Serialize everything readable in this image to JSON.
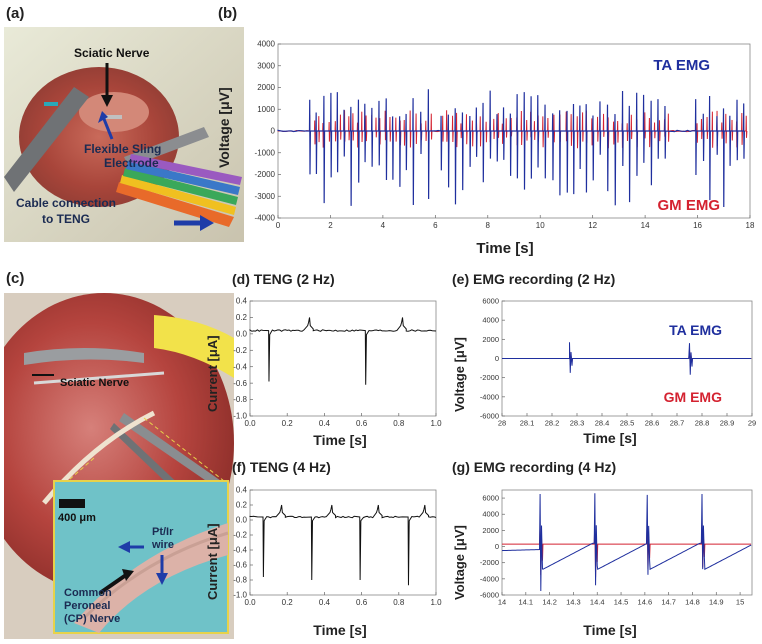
{
  "panel_a": {
    "label": "(a)",
    "annotations": {
      "nerve": "Sciatic Nerve",
      "electrode_1": "Flexible Sling",
      "electrode_2": "Electrode",
      "cable_1": "Cable connection",
      "cable_2": "to TENG"
    }
  },
  "panel_c": {
    "label": "(c)",
    "annotations": {
      "nerve": "Sciatic Nerve",
      "scale": "400 μm",
      "wire_1": "Pt/Ir",
      "wire_2": "wire",
      "cp_1": "Common",
      "cp_2": "Peroneal",
      "cp_3": "(CP) Nerve"
    }
  },
  "colors": {
    "ta": "#1f2f9e",
    "gm": "#d42230",
    "teng": "#111111",
    "axis": "#555555"
  },
  "chart_data": [
    {
      "id": "b",
      "label": "(b)",
      "type": "line",
      "title": "",
      "xlabel": "Time [s]",
      "ylabel": "Voltage [μV]",
      "xlim": [
        0,
        18
      ],
      "ylim": [
        -4000,
        4000
      ],
      "xticks": [
        0,
        2,
        4,
        6,
        8,
        10,
        12,
        14,
        16,
        18
      ],
      "yticks": [
        4000,
        3000,
        2000,
        1000,
        0,
        -1000,
        -2000,
        -3000,
        -4000
      ],
      "legend_ta": "TA EMG",
      "legend_gm": "GM EMG",
      "bursts": [
        [
          1.2,
          5.9
        ],
        [
          6.2,
          13.8
        ],
        [
          13.9,
          14.9
        ],
        [
          15.9,
          18
        ]
      ],
      "series": [
        {
          "name": "TA EMG",
          "color": "#1f2f9e",
          "peak_amplitude": 3500
        },
        {
          "name": "GM EMG",
          "color": "#d42230",
          "peak_amplitude": 1600
        }
      ]
    },
    {
      "id": "d",
      "label": "(d) TENG (2 Hz)",
      "type": "line",
      "xlabel": "Time [s]",
      "ylabel": "Current [μA]",
      "xlim": [
        0,
        1.0
      ],
      "ylim": [
        -1.0,
        0.4
      ],
      "xticks": [
        "0.0",
        "0.2",
        "0.4",
        "0.6",
        "0.8",
        "1.0"
      ],
      "yticks": [
        "0.4",
        "0.2",
        "0.0",
        "-0.2",
        "-0.4",
        "-0.6",
        "-0.8",
        "-1.0"
      ],
      "baseline": 0.04,
      "negative_peaks": [
        {
          "t": 0.1,
          "v": -0.58
        },
        {
          "t": 0.62,
          "v": -0.62
        }
      ],
      "positive_peaks": [
        {
          "t": 0.32,
          "v": 0.2
        },
        {
          "t": 0.82,
          "v": 0.2
        }
      ]
    },
    {
      "id": "e",
      "label": "(e) EMG recording (2 Hz)",
      "type": "line",
      "xlabel": "Time [s]",
      "ylabel": "Voltage [μV]",
      "xlim": [
        28,
        29
      ],
      "ylim": [
        -6000,
        6000
      ],
      "xticks": [
        "28",
        "28.1",
        "28.2",
        "28.3",
        "28.4",
        "28.5",
        "28.6",
        "28.7",
        "28.8",
        "28.9",
        "29"
      ],
      "yticks": [
        "6000",
        "4000",
        "2000",
        "0",
        "-2000",
        "-4000",
        "-6000"
      ],
      "legend_ta": "TA EMG",
      "legend_gm": "GM EMG",
      "spikes": [
        {
          "t": 28.27,
          "ta": [
            1700,
            -1500
          ],
          "gm": [
            800,
            -700
          ]
        },
        {
          "t": 28.75,
          "ta": [
            1600,
            -1700
          ],
          "gm": [
            900,
            -800
          ]
        }
      ]
    },
    {
      "id": "f",
      "label": "(f) TENG (4 Hz)",
      "type": "line",
      "xlabel": "Time [s]",
      "ylabel": "Current [μA]",
      "xlim": [
        0,
        1.0
      ],
      "ylim": [
        -1.0,
        0.4
      ],
      "xticks": [
        "0.0",
        "0.2",
        "0.4",
        "0.6",
        "0.8",
        "1.0"
      ],
      "yticks": [
        "0.4",
        "0.2",
        "0.0",
        "-0.2",
        "-0.4",
        "-0.6",
        "-0.8",
        "-1.0"
      ],
      "baseline": 0.04,
      "negative_peaks": [
        {
          "t": 0.07,
          "v": -0.76
        },
        {
          "t": 0.33,
          "v": -0.8
        },
        {
          "t": 0.59,
          "v": -0.8
        },
        {
          "t": 0.85,
          "v": -0.87
        }
      ],
      "positive_peaks": [
        {
          "t": 0.17,
          "v": 0.2
        },
        {
          "t": 0.44,
          "v": 0.2
        },
        {
          "t": 0.69,
          "v": 0.2
        },
        {
          "t": 0.94,
          "v": 0.2
        }
      ]
    },
    {
      "id": "g",
      "label": "(g) EMG recording (4 Hz)",
      "type": "line",
      "xlabel": "Time [s]",
      "ylabel": "Voltage [μV]",
      "xlim": [
        14,
        15.05
      ],
      "ylim": [
        -6000,
        7000
      ],
      "xticks": [
        "14",
        "14.1",
        "14.2",
        "14.3",
        "14.4",
        "14.5",
        "14.6",
        "14.7",
        "14.8",
        "14.9",
        "15"
      ],
      "yticks": [
        "6000",
        "4000",
        "2000",
        "0",
        "-2000",
        "-4000",
        "-6000"
      ],
      "spikes": [
        {
          "t": 14.16,
          "ta": [
            6500,
            -5500
          ],
          "gm": [
            2500,
            -3500
          ]
        },
        {
          "t": 14.39,
          "ta": [
            6600,
            -4800
          ],
          "gm": [
            3000,
            -3800
          ]
        },
        {
          "t": 14.61,
          "ta": [
            6400,
            -3500
          ],
          "gm": [
            3000,
            -2800
          ]
        },
        {
          "t": 14.84,
          "ta": [
            6500,
            -2800
          ],
          "gm": [
            3000,
            -2600
          ]
        }
      ]
    }
  ]
}
